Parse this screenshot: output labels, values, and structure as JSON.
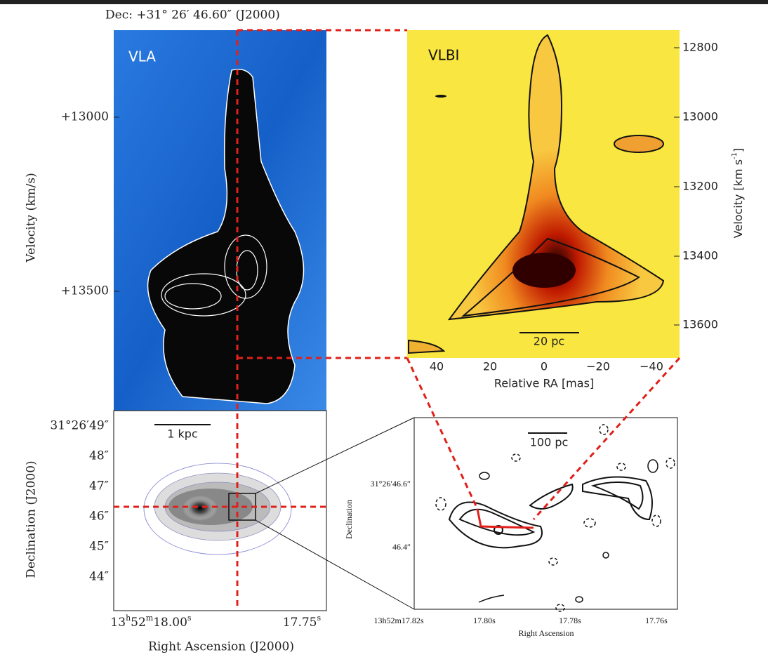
{
  "header": {
    "dec_title": "Dec: +31° 26′ 46.60″ (J2000)"
  },
  "vla_panel": {
    "label": "VLA",
    "y_label": "Velocity (km/s)",
    "y_ticks": [
      "+13000",
      "+13500"
    ]
  },
  "vlbi_panel": {
    "label": "VLBI",
    "y_label_parts": [
      "Velocity [km s",
      "-1",
      "]"
    ],
    "y_ticks": [
      "12800",
      "13000",
      "13200",
      "13400",
      "13600"
    ],
    "x_ticks": [
      "40",
      "20",
      "0",
      "−20",
      "−40"
    ],
    "x_label": "Relative RA [mas]",
    "scale_bar": "20 pc"
  },
  "map_panel": {
    "y_label": "Declination (J2000)",
    "y_ticks": [
      "31°26′49″",
      "48″",
      "47″",
      "46″",
      "45″",
      "44″"
    ],
    "x_tick_0_parts": [
      "13",
      "h",
      "52",
      "m",
      "18.00",
      "s"
    ],
    "x_tick_1_parts": [
      "17.75",
      "s"
    ],
    "x_label": "Right Ascension (J2000)",
    "scale_bar": "1 kpc"
  },
  "zoom_panel": {
    "y_label": "Declination",
    "y_ticks": [
      "31°26′46.6″",
      "46.4″"
    ],
    "x_ticks": [
      "13h52m17.82s",
      "17.80s",
      "17.78s",
      "17.76s"
    ],
    "x_label": "Right Ascension",
    "scale_bar": "100 pc"
  }
}
